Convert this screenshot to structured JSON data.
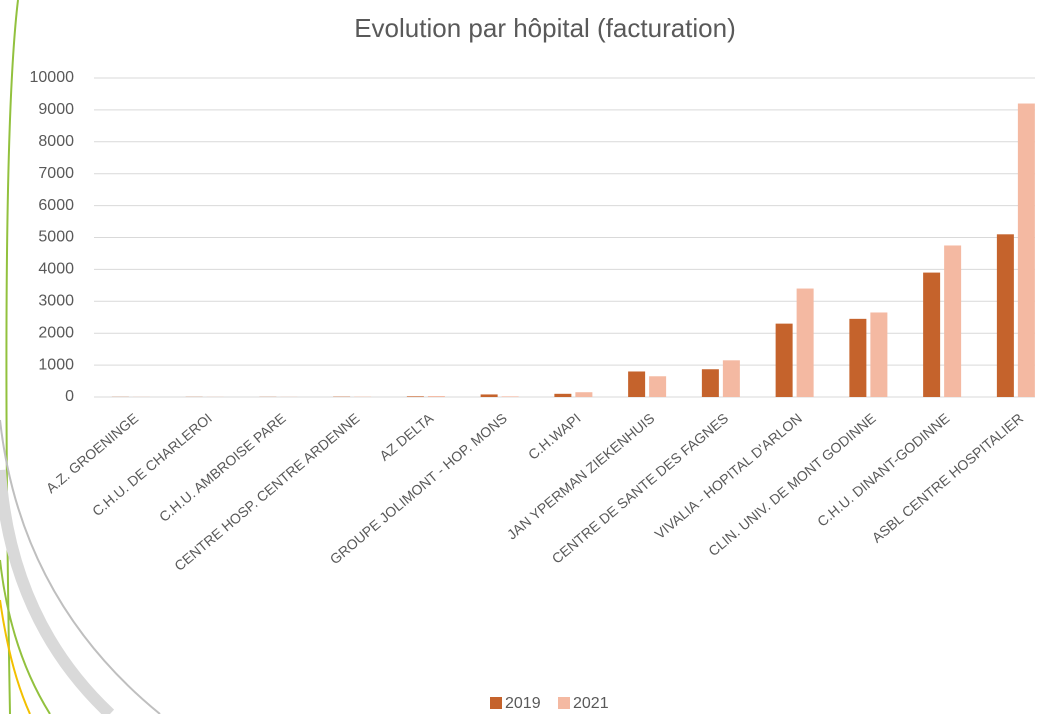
{
  "chart_data": {
    "type": "bar",
    "title": "Evolution par hôpital (facturation)",
    "categories": [
      "A.Z. GROENINGE",
      "C.H.U. DE CHARLEROI",
      "C.H.U. AMBROISE PARE",
      "CENTRE HOSP. CENTRE ARDENNE",
      "AZ DELTA",
      "GROUPE JOLIMONT - HOP. MONS",
      "C.H.WAPI",
      "JAN YPERMAN ZIEKENHUIS",
      "CENTRE DE SANTE DES FAGNES",
      "VIVALIA - HOPITAL D'ARLON",
      "CLIN. UNIV. DE MONT GODINNE",
      "C.H.U. DINANT-GODINNE",
      "ASBL CENTRE HOSPITALIER"
    ],
    "series": [
      {
        "name": "2019",
        "color": "#c5632c",
        "values": [
          5,
          5,
          5,
          10,
          20,
          80,
          100,
          800,
          870,
          2300,
          2450,
          3900,
          5100
        ]
      },
      {
        "name": "2021",
        "color": "#f4b9a2",
        "values": [
          5,
          5,
          5,
          10,
          30,
          20,
          150,
          650,
          1150,
          3400,
          2650,
          4750,
          9200
        ]
      }
    ],
    "ylim": [
      0,
      10000
    ],
    "yticks": [
      0,
      1000,
      2000,
      3000,
      4000,
      5000,
      6000,
      7000,
      8000,
      9000,
      10000
    ],
    "grid": true,
    "legend": "bottom"
  }
}
